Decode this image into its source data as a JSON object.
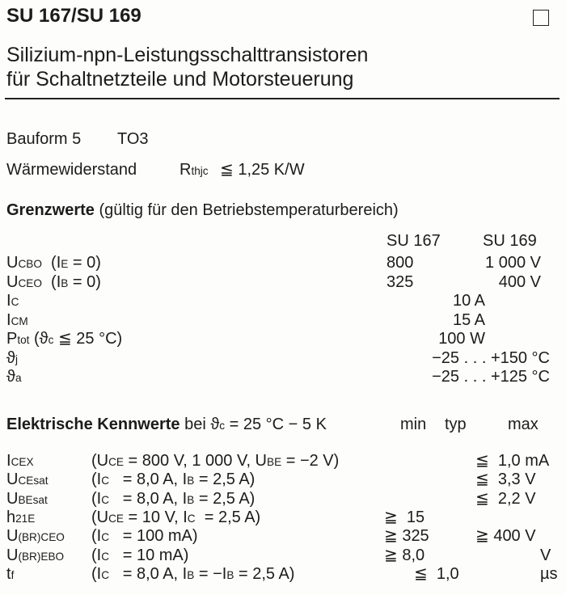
{
  "title": "SU 167/SU 169",
  "subtitle": [
    "Silizium-npn-Leistungsschalttransistoren",
    "für Schaltnetzteile und Motorsteuerung"
  ],
  "package": {
    "label": "Bauform 5",
    "value": "TO3"
  },
  "thermal": {
    "label": "Wärmewiderstand",
    "symbol": [
      "R",
      [
        "thjc"
      ]
    ],
    "value": "≦ 1,25 K/W"
  },
  "limits": {
    "heading": "Grenzwerte",
    "heading_note": "(gültig für den Betriebstemperaturbereich)",
    "columns": [
      "SU 167",
      "SU 169"
    ],
    "rows": [
      {
        "symbol": [
          "U",
          [
            "CBO"
          ],
          "  (I",
          [
            "E"
          ],
          " = 0)"
        ],
        "su167": "800",
        "su169": "1 000 V"
      },
      {
        "symbol": [
          "U",
          [
            "CEO"
          ],
          "  (I",
          [
            "B"
          ],
          " = 0)"
        ],
        "su167": "325",
        "su169": "400 V"
      },
      {
        "symbol": [
          "I",
          [
            "C"
          ]
        ],
        "common": "10 A"
      },
      {
        "symbol": [
          "I",
          [
            "CM"
          ]
        ],
        "common": "15 A"
      },
      {
        "symbol": [
          "P",
          [
            "tot"
          ],
          " (ϑ",
          [
            "c"
          ],
          " ≦ 25 °C)"
        ],
        "common": "100 W"
      },
      {
        "symbol": [
          "ϑ",
          [
            "j"
          ]
        ],
        "range": "−25 . . . +150 °C"
      },
      {
        "symbol": [
          "ϑ",
          [
            "a"
          ]
        ],
        "range": "−25 . . . +125 °C"
      }
    ]
  },
  "electrical": {
    "heading": "Elektrische Kennwerte",
    "heading_note": "bei ϑ",
    "heading_sub": "c",
    "heading_cond": " = 25 °C − 5 K",
    "col_min": "min",
    "col_typ": "typ",
    "col_max": "max",
    "rows": [
      {
        "symbol": [
          "I",
          [
            "CEX"
          ]
        ],
        "cond": [
          "(U",
          [
            "CE"
          ],
          " = 800 V, 1 000 V, U",
          [
            "BE"
          ],
          " = −2 V)"
        ],
        "min": "",
        "typ": "",
        "max": "≦  1,0 mA"
      },
      {
        "symbol": [
          "U",
          [
            "CEsat"
          ]
        ],
        "cond": [
          "(I",
          [
            "C"
          ],
          "   = 8,0 A, I",
          [
            "B"
          ],
          " = 2,5 A)"
        ],
        "min": "",
        "typ": "",
        "max": "≦  3,3 V"
      },
      {
        "symbol": [
          "U",
          [
            "BEsat"
          ]
        ],
        "cond": [
          "(I",
          [
            "C"
          ],
          "   = 8,0 A, I",
          [
            "B"
          ],
          " = 2,5 A)"
        ],
        "min": "",
        "typ": "",
        "max": "≦  2,2 V"
      },
      {
        "symbol": [
          "h",
          [
            "21E"
          ]
        ],
        "cond": [
          "(U",
          [
            "CE"
          ],
          " = 10 V, I",
          [
            "C"
          ],
          "  = 2,5 A)"
        ],
        "min": "≧  15",
        "typ": "",
        "max": ""
      },
      {
        "symbol": [
          "U",
          [
            "(BR)CEO"
          ]
        ],
        "cond": [
          "(I",
          [
            "C"
          ],
          "   = 100 mA)"
        ],
        "min": "≧ 325",
        "typ": "",
        "max": "≧ 400 V"
      },
      {
        "symbol": [
          "U",
          [
            "(BR)EBO"
          ]
        ],
        "cond": [
          "(I",
          [
            "C"
          ],
          "   = 10 mA)"
        ],
        "min": "≧ 8,0",
        "typ": "",
        "max": "V"
      },
      {
        "symbol": [
          "t",
          [
            "f"
          ]
        ],
        "cond": [
          "(I",
          [
            "C"
          ],
          "   = 8,0 A, I",
          [
            "B"
          ],
          " = −I",
          [
            "B"
          ],
          " = 2,5 A)"
        ],
        "min": "",
        "typ": "≦  1,0",
        "max": "µs"
      }
    ]
  }
}
